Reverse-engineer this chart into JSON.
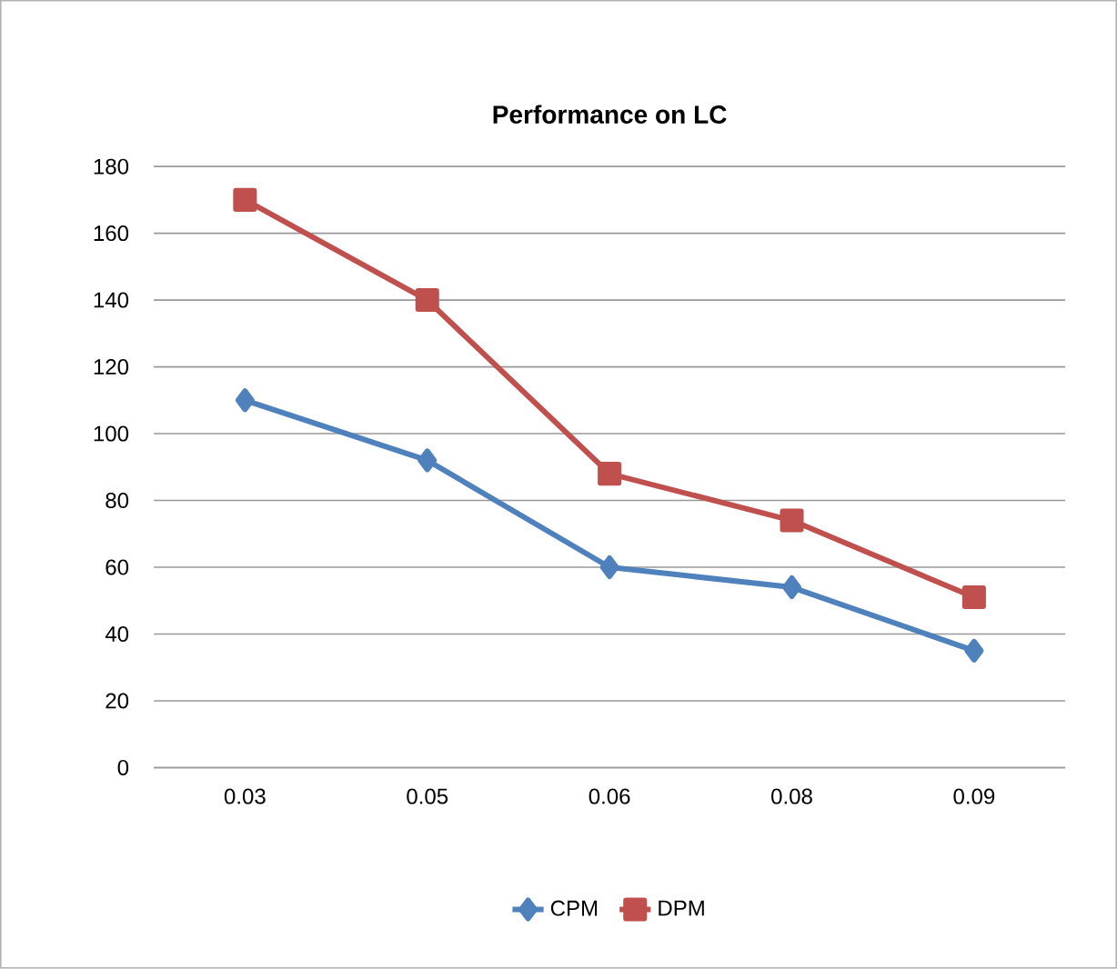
{
  "chart_data": {
    "type": "line",
    "title": "Performance on LC",
    "categories": [
      "0.03",
      "0.05",
      "0.06",
      "0.08",
      "0.09"
    ],
    "series": [
      {
        "name": "CPM",
        "color": "#4f81bd",
        "marker": "diamond",
        "values": [
          110,
          92,
          60,
          54,
          35
        ]
      },
      {
        "name": "DPM",
        "color": "#c0504d",
        "marker": "square",
        "values": [
          170,
          140,
          88,
          74,
          51
        ]
      }
    ],
    "ylim": [
      0,
      180
    ],
    "yticks": [
      0,
      20,
      40,
      60,
      80,
      100,
      120,
      140,
      160,
      180
    ],
    "grid": "y",
    "legend": "bottom",
    "line_style": "solid"
  }
}
